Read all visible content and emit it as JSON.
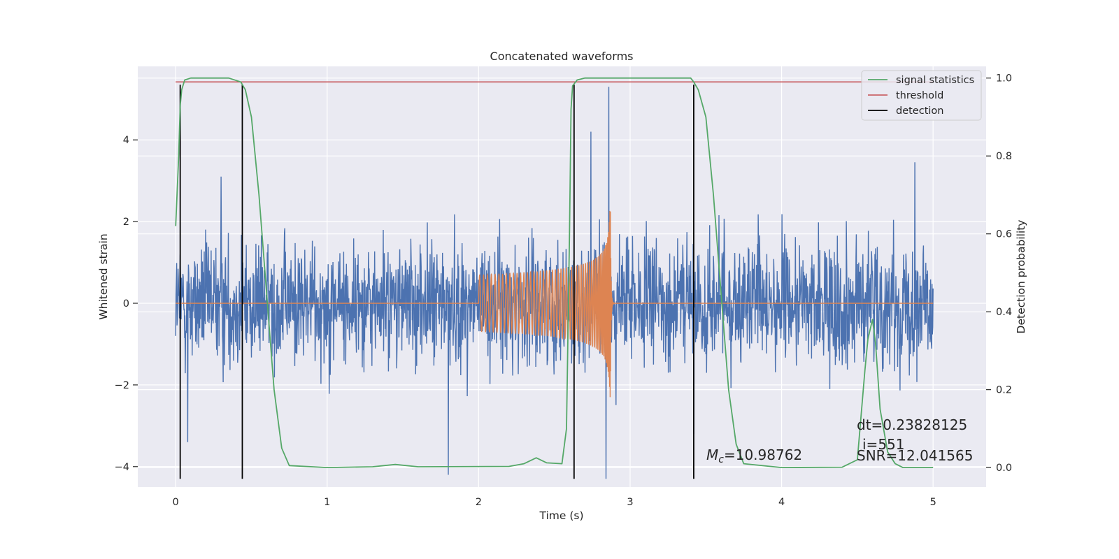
{
  "chart_data": {
    "type": "line",
    "title": "Concatenated waveforms",
    "xlabel": "Time (s)",
    "ylabel": "Whitened strain",
    "y2label": "Detection probability",
    "xlim": [
      -0.25,
      5.35
    ],
    "ylim": [
      -4.5,
      5.8
    ],
    "y2lim": [
      -0.05,
      1.03
    ],
    "xticks": [
      0,
      1,
      2,
      3,
      4,
      5
    ],
    "yticks": [
      -4,
      -2,
      0,
      2,
      4
    ],
    "y2ticks": [
      0.0,
      0.2,
      0.4,
      0.6,
      0.8,
      1.0
    ],
    "xtick_labels": [
      "0",
      "1",
      "2",
      "3",
      "4",
      "5"
    ],
    "ytick_labels": [
      "−4",
      "−2",
      "0",
      "2",
      "4"
    ],
    "y2tick_labels": [
      "0.0",
      "0.2",
      "0.4",
      "0.6",
      "0.8",
      "1.0"
    ],
    "grid": true,
    "legend_position": "top-right",
    "legend": [
      {
        "name": "signal statistics",
        "color": "#55a868"
      },
      {
        "name": "threshold",
        "color": "#c44e52"
      },
      {
        "name": "detection",
        "color": "#000000"
      }
    ],
    "colors": {
      "strain": "#4c72b0",
      "waveform": "#dd8452",
      "signal_statistics": "#55a868",
      "threshold": "#c44e52",
      "detection": "#000000",
      "plot_background": "#eaeaf2",
      "grid": "#ffffff"
    },
    "series": [
      {
        "name": "strain",
        "axis": "left",
        "description_range": [
          -2.5,
          3.5
        ],
        "x_range": [
          0,
          5
        ],
        "spikes": [
          [
            0.08,
            -3.4
          ],
          [
            1.8,
            -4.2
          ],
          [
            2.84,
            -4.3
          ],
          [
            2.86,
            5.3
          ],
          [
            2.74,
            4.2
          ],
          [
            4.88,
            3.45
          ],
          [
            0.3,
            3.1
          ],
          [
            3.42,
            -3.2
          ]
        ]
      },
      {
        "name": "waveform",
        "axis": "left",
        "x_range": [
          2.0,
          2.9
        ],
        "peak_amplitude": 2.3,
        "peak_time": 2.87
      },
      {
        "name": "signal statistics",
        "axis": "right",
        "x": [
          0.0,
          0.02,
          0.03,
          0.04,
          0.06,
          0.1,
          0.35,
          0.43,
          0.46,
          0.5,
          0.55,
          0.6,
          0.65,
          0.7,
          0.75,
          1.0,
          1.3,
          1.45,
          1.6,
          2.2,
          2.3,
          2.38,
          2.45,
          2.55,
          2.58,
          2.6,
          2.61,
          2.62,
          2.65,
          2.7,
          3.4,
          3.42,
          3.45,
          3.5,
          3.55,
          3.6,
          3.65,
          3.7,
          3.75,
          4.0,
          4.4,
          4.5,
          4.55,
          4.57,
          4.6,
          4.62,
          4.65,
          4.7,
          4.75,
          4.8,
          5.0
        ],
        "y": [
          0.62,
          0.8,
          0.93,
          0.97,
          0.995,
          1.0,
          1.0,
          0.99,
          0.97,
          0.9,
          0.7,
          0.45,
          0.2,
          0.05,
          0.005,
          0.0,
          0.002,
          0.008,
          0.002,
          0.003,
          0.01,
          0.025,
          0.012,
          0.01,
          0.1,
          0.6,
          0.92,
          0.98,
          0.995,
          1.0,
          1.0,
          0.99,
          0.97,
          0.9,
          0.7,
          0.45,
          0.2,
          0.06,
          0.01,
          0.0,
          0.001,
          0.02,
          0.25,
          0.33,
          0.38,
          0.32,
          0.15,
          0.04,
          0.01,
          0.0,
          0.0
        ]
      },
      {
        "name": "threshold",
        "axis": "right",
        "x": [
          0,
          5
        ],
        "y": [
          0.99,
          0.99
        ]
      }
    ],
    "detections": [
      0.03,
      0.44,
      2.63,
      3.42
    ],
    "detection_y_range": [
      -4.3,
      5.35
    ],
    "annotations": {
      "mc_symbol": "M",
      "mc_subscript": "c",
      "mc_value": "=10.98762",
      "dt": "dt=0.23828125",
      "index": "i=551",
      "snr": "SNR=12.041565"
    }
  }
}
